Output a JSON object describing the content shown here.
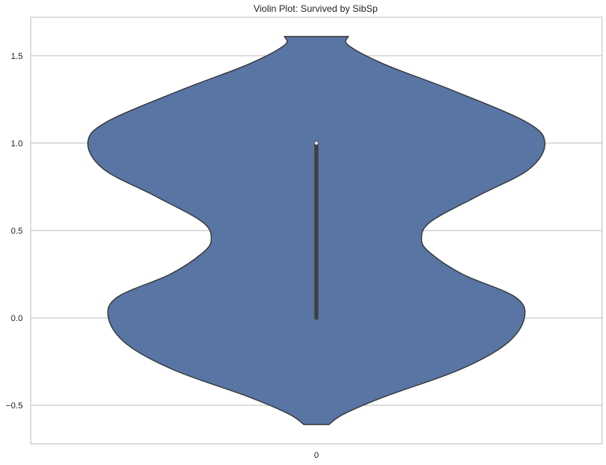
{
  "chart_data": {
    "type": "violin",
    "title": "Violin Plot: Survived by SibSp",
    "xlabel": "",
    "ylabel": "",
    "categories": [
      "0"
    ],
    "ylim": [
      -0.72,
      1.72
    ],
    "yticks": [
      -0.5,
      0.0,
      0.5,
      1.0,
      1.5
    ],
    "ytick_labels": [
      "−0.5",
      "0.0",
      "0.5",
      "1.0",
      "1.5"
    ],
    "grid": true,
    "series": [
      {
        "category": "0",
        "color": "#5875a4",
        "edge_color": "#333333",
        "density_profile": [
          {
            "y": -0.61,
            "half_width": 0.055
          },
          {
            "y": -0.55,
            "half_width": 0.12
          },
          {
            "y": -0.45,
            "half_width": 0.3
          },
          {
            "y": -0.3,
            "half_width": 0.62
          },
          {
            "y": -0.15,
            "half_width": 0.83
          },
          {
            "y": 0.0,
            "half_width": 0.91
          },
          {
            "y": 0.12,
            "half_width": 0.87
          },
          {
            "y": 0.25,
            "half_width": 0.64
          },
          {
            "y": 0.37,
            "half_width": 0.5
          },
          {
            "y": 0.45,
            "half_width": 0.46
          },
          {
            "y": 0.55,
            "half_width": 0.5
          },
          {
            "y": 0.7,
            "half_width": 0.71
          },
          {
            "y": 0.85,
            "half_width": 0.93
          },
          {
            "y": 1.0,
            "half_width": 1.0
          },
          {
            "y": 1.12,
            "half_width": 0.92
          },
          {
            "y": 1.3,
            "half_width": 0.6
          },
          {
            "y": 1.45,
            "half_width": 0.3
          },
          {
            "y": 1.56,
            "half_width": 0.14
          },
          {
            "y": 1.61,
            "half_width": 0.14
          }
        ],
        "quartiles": {
          "q1": 0.0,
          "median": 1.0,
          "q3": 1.0
        }
      }
    ]
  }
}
